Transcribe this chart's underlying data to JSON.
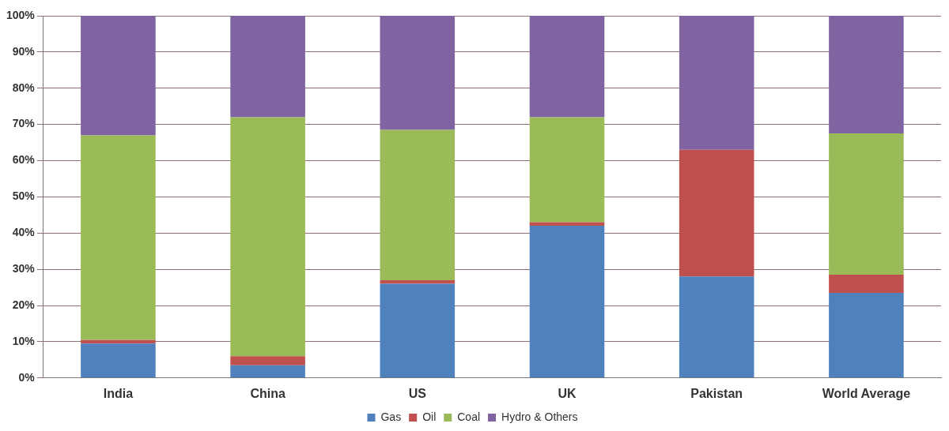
{
  "chart_data": {
    "type": "bar",
    "stacked": true,
    "categories": [
      "India",
      "China",
      "US",
      "UK",
      "Pakistan",
      "World Average"
    ],
    "series": [
      {
        "name": "Gas",
        "color": "#4f81bd",
        "values": [
          9.5,
          3.5,
          26,
          42,
          28,
          23.5
        ]
      },
      {
        "name": "Oil",
        "color": "#c0504d",
        "values": [
          1,
          2.5,
          1,
          1,
          35,
          5
        ]
      },
      {
        "name": "Coal",
        "color": "#9bbb59",
        "values": [
          56.5,
          66,
          41.5,
          29,
          0,
          39
        ]
      },
      {
        "name": "Hydro & Others",
        "color": "#8064a2",
        "values": [
          33,
          28,
          31.5,
          28,
          37,
          32.5
        ]
      }
    ],
    "ylim": [
      0,
      100
    ],
    "yticks": [
      {
        "value": 0,
        "label": "0%"
      },
      {
        "value": 10,
        "label": "10%"
      },
      {
        "value": 20,
        "label": "20%"
      },
      {
        "value": 30,
        "label": "30%"
      },
      {
        "value": 40,
        "label": "40%"
      },
      {
        "value": 50,
        "label": "50%"
      },
      {
        "value": 60,
        "label": "60%"
      },
      {
        "value": 70,
        "label": "70%"
      },
      {
        "value": 80,
        "label": "80%"
      },
      {
        "value": 90,
        "label": "90%"
      },
      {
        "value": 100,
        "label": "100%"
      }
    ],
    "grid": "y",
    "legend": "bottom"
  }
}
